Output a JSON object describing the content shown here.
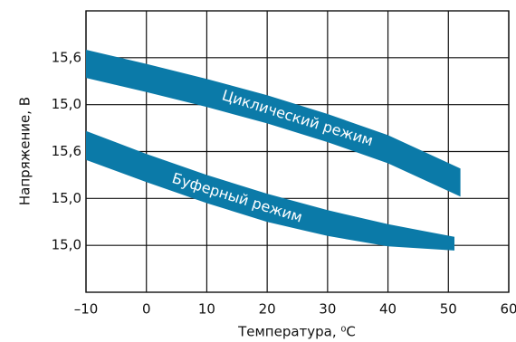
{
  "chart_data": {
    "type": "band",
    "xlabel": "Температура, ⁰C",
    "ylabel": "Напряжение, В",
    "xlim": [
      -10,
      60
    ],
    "xticks": [
      {
        "value": -10,
        "label": "–10"
      },
      0,
      10,
      20,
      30,
      40,
      50,
      60
    ],
    "ylim": [
      0,
      6
    ],
    "yticks": [
      {
        "value": 1,
        "label": "15,0"
      },
      {
        "value": 2,
        "label": "15,0"
      },
      {
        "value": 3,
        "label": "15,6"
      },
      {
        "value": 4,
        "label": "15,0"
      },
      {
        "value": 5,
        "label": "15,6"
      }
    ],
    "grid": true,
    "series": [
      {
        "name": "Циклический режим",
        "color": "#0b7aa8",
        "x": [
          -10,
          0,
          10,
          20,
          30,
          40,
          52
        ],
        "upper": [
          5.17,
          4.87,
          4.55,
          4.2,
          3.8,
          3.35,
          2.64
        ],
        "lower": [
          4.57,
          4.27,
          3.95,
          3.6,
          3.2,
          2.75,
          2.04
        ]
      },
      {
        "name": "Буферный режим",
        "color": "#0b7aa8",
        "x": [
          -10,
          0,
          10,
          20,
          30,
          40,
          51
        ],
        "upper": [
          3.44,
          2.95,
          2.5,
          2.1,
          1.75,
          1.45,
          1.18
        ],
        "lower": [
          2.82,
          2.35,
          1.9,
          1.5,
          1.2,
          0.98,
          0.89
        ]
      }
    ]
  }
}
